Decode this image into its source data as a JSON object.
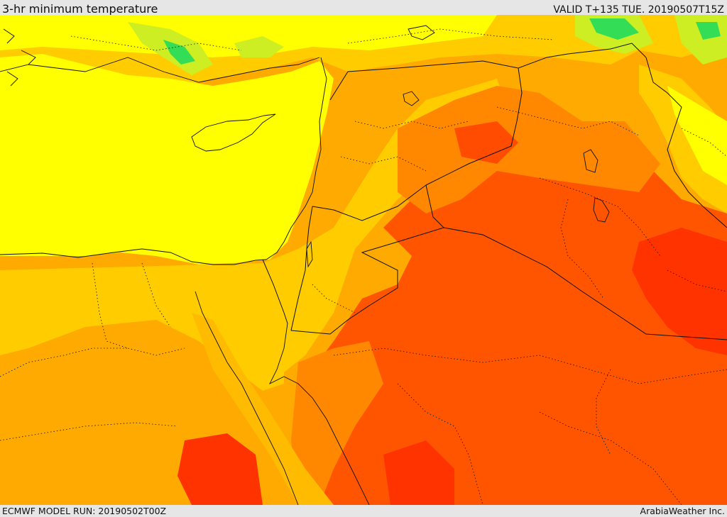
{
  "header": {
    "title": "3-hr minimum temperature",
    "valid_time": "VALID T+135 TUE. 20190507T15Z"
  },
  "footer": {
    "model_run": "ECMWF MODEL RUN: 20190502T00Z",
    "credit": "ArabiaWeather Inc."
  },
  "map": {
    "field": "3-hr minimum temperature",
    "region": "Eastern Mediterranean, Levant, Iraq, Egypt, northern Arabian Peninsula",
    "shading_colors": {
      "green": "#33dd55",
      "yellow_green": "#ccee22",
      "yellow": "#ffff00",
      "light_orange": "#ffcc00",
      "orange": "#ffaa00",
      "dark_orange": "#ff8800",
      "red_orange": "#ff5500",
      "red": "#ff3300"
    },
    "overlays": [
      "country-borders",
      "province-borders",
      "coastlines"
    ]
  }
}
